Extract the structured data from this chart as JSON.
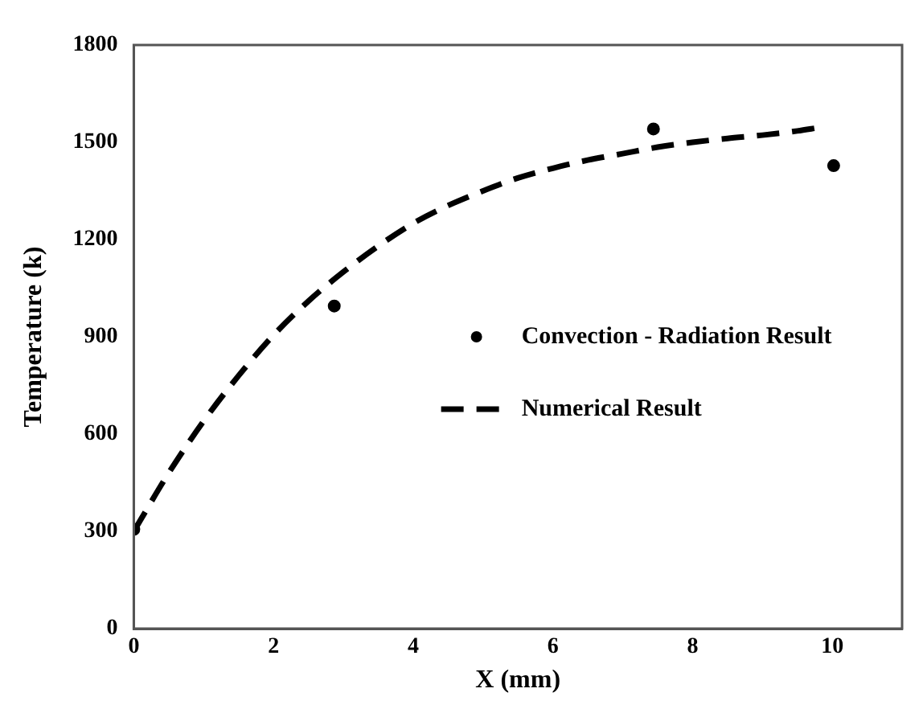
{
  "chart_data": {
    "type": "line",
    "xlabel": "X (mm)",
    "ylabel": "Temperature (k)",
    "xlim": [
      0,
      11
    ],
    "xticks": [
      0,
      2,
      4,
      6,
      8,
      10
    ],
    "ylim": [
      0,
      1800
    ],
    "yticks": [
      0,
      300,
      600,
      900,
      1200,
      1500,
      1800
    ],
    "grid": false,
    "legend": "right",
    "series": [
      {
        "name": "Convection - Radiation Result",
        "type": "scatter",
        "color": "#000000",
        "marker": "circle",
        "x": [
          0,
          2.87,
          7.44,
          10.02
        ],
        "values": [
          306,
          995,
          1541,
          1428
        ]
      },
      {
        "name": "Numerical Result",
        "color": "#000000",
        "line_style": "dashed",
        "marker": "none",
        "x": [
          0,
          0.5,
          1,
          1.5,
          2,
          2.5,
          3,
          3.5,
          4,
          4.5,
          5,
          5.5,
          6,
          6.5,
          7,
          7.5,
          8,
          8.5,
          9,
          9.5,
          9.8
        ],
        "values": [
          300,
          480,
          640,
          780,
          905,
          1010,
          1100,
          1180,
          1250,
          1305,
          1350,
          1390,
          1420,
          1445,
          1465,
          1485,
          1500,
          1512,
          1522,
          1535,
          1545
        ]
      }
    ]
  }
}
